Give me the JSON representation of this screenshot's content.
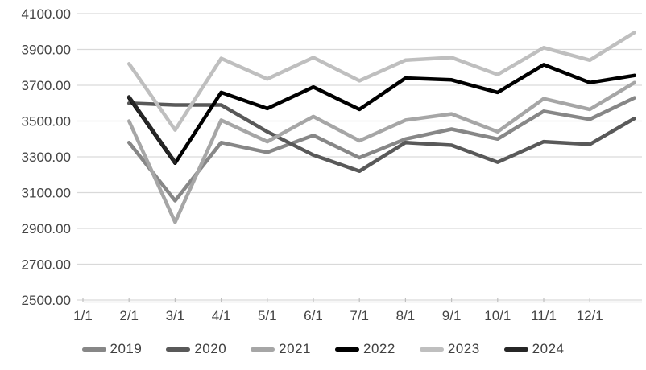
{
  "chart_data": {
    "type": "line",
    "title": "",
    "grid": "horizontal",
    "legend_position": "bottom",
    "y_axis": {
      "min": 2500,
      "max": 4100,
      "step": 200,
      "tick_labels": [
        "2500.00",
        "2700.00",
        "2900.00",
        "3100.00",
        "3300.00",
        "3500.00",
        "3700.00",
        "3900.00",
        "4100.00"
      ]
    },
    "x_axis": {
      "tick_labels": [
        "1/1",
        "2/1",
        "3/1",
        "4/1",
        "5/1",
        "6/1",
        "7/1",
        "8/1",
        "9/1",
        "10/1",
        "11/1",
        "12/1"
      ]
    },
    "series": [
      {
        "name": "2019",
        "color": "#878787",
        "x": [
          1,
          2,
          3,
          4,
          5,
          6,
          7,
          8,
          9,
          10,
          11,
          11.97
        ],
        "values": [
          3380,
          3055,
          3380,
          3325,
          3420,
          3295,
          3400,
          3455,
          3400,
          3555,
          3510,
          3630
        ]
      },
      {
        "name": "2020",
        "color": "#595959",
        "x": [
          1,
          2,
          3,
          4,
          5,
          6,
          7,
          8,
          9,
          10,
          11,
          11.97
        ],
        "values": [
          3600,
          3590,
          3590,
          3440,
          3310,
          3220,
          3380,
          3365,
          3270,
          3385,
          3370,
          3515
        ]
      },
      {
        "name": "2021",
        "color": "#a6a6a6",
        "x": [
          1,
          2,
          3,
          4,
          5,
          6,
          7,
          8,
          9,
          10,
          11,
          11.97
        ],
        "values": [
          3500,
          2935,
          3505,
          3385,
          3525,
          3390,
          3505,
          3540,
          3440,
          3625,
          3565,
          3715
        ]
      },
      {
        "name": "2022",
        "color": "#000000",
        "x": [
          1,
          2,
          3,
          4,
          5,
          6,
          7,
          8,
          9,
          10,
          11,
          11.97
        ],
        "values": [
          3630,
          3265,
          3660,
          3570,
          3690,
          3565,
          3740,
          3730,
          3660,
          3815,
          3715,
          3755
        ]
      },
      {
        "name": "2023",
        "color": "#bfbfbf",
        "x": [
          1,
          2,
          3,
          4,
          5,
          6,
          7,
          8,
          9,
          10,
          11,
          11.97
        ],
        "values": [
          3820,
          3450,
          3850,
          3735,
          3855,
          3725,
          3840,
          3855,
          3760,
          3910,
          3840,
          3995
        ]
      },
      {
        "name": "2024",
        "color": "#262626",
        "x": [
          1,
          2
        ],
        "values": [
          3635,
          3270
        ]
      }
    ],
    "colors": {
      "gridline": "#d9d9d9",
      "axis_line": "#bfbfbf",
      "tick": "#bfbfbf",
      "label_text": "#404040"
    }
  }
}
